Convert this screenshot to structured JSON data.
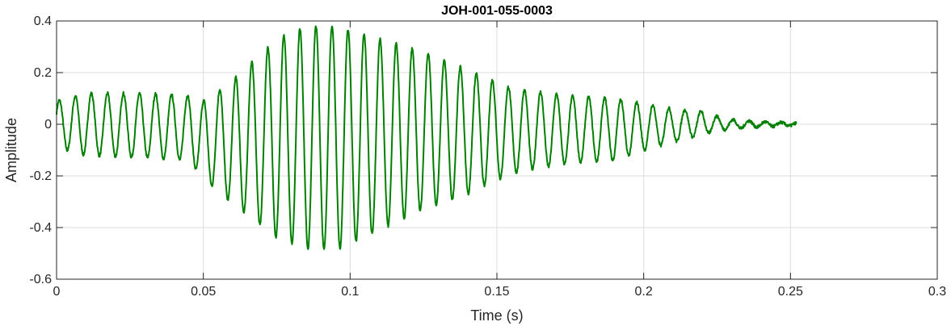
{
  "chart_data": {
    "type": "line",
    "title": "JOH-001-055-0003",
    "xlabel": "Time (s)",
    "ylabel": "Amplitude",
    "xlim": [
      0,
      0.3
    ],
    "ylim": [
      -0.6,
      0.4
    ],
    "xticks": [
      0,
      0.05,
      0.1,
      0.15,
      0.2,
      0.25,
      0.3
    ],
    "xtick_labels": [
      "0",
      "0.05",
      "0.1",
      "0.15",
      "0.2",
      "0.25",
      "0.3"
    ],
    "yticks": [
      -0.6,
      -0.4,
      -0.2,
      0,
      0.2,
      0.4
    ],
    "ytick_labels": [
      "-0.6",
      "-0.4",
      "-0.2",
      "0",
      "0.2",
      "0.4"
    ],
    "grid": true,
    "line_color": "#008000",
    "grid_color": "#dcdcdc",
    "axis_color": "#262626",
    "series": [
      {
        "signal_model": "amplitude-modulated oscillation",
        "duration": 0.252,
        "frequency_hz": 183,
        "envelope_times": [
          0,
          0.01,
          0.03,
          0.045,
          0.05,
          0.06,
          0.075,
          0.085,
          0.095,
          0.11,
          0.125,
          0.14,
          0.155,
          0.175,
          0.19,
          0.2,
          0.21,
          0.22,
          0.228,
          0.24,
          0.252
        ],
        "envelope_upper": [
          0.09,
          0.12,
          0.12,
          0.11,
          0.09,
          0.17,
          0.33,
          0.38,
          0.38,
          0.33,
          0.28,
          0.21,
          0.14,
          0.11,
          0.1,
          0.08,
          0.06,
          0.05,
          0.02,
          0.01,
          0.005
        ],
        "envelope_lower": [
          -0.09,
          -0.12,
          -0.13,
          -0.14,
          -0.21,
          -0.31,
          -0.44,
          -0.48,
          -0.49,
          -0.41,
          -0.33,
          -0.27,
          -0.19,
          -0.15,
          -0.14,
          -0.1,
          -0.07,
          -0.04,
          -0.02,
          -0.01,
          -0.005
        ]
      }
    ]
  }
}
